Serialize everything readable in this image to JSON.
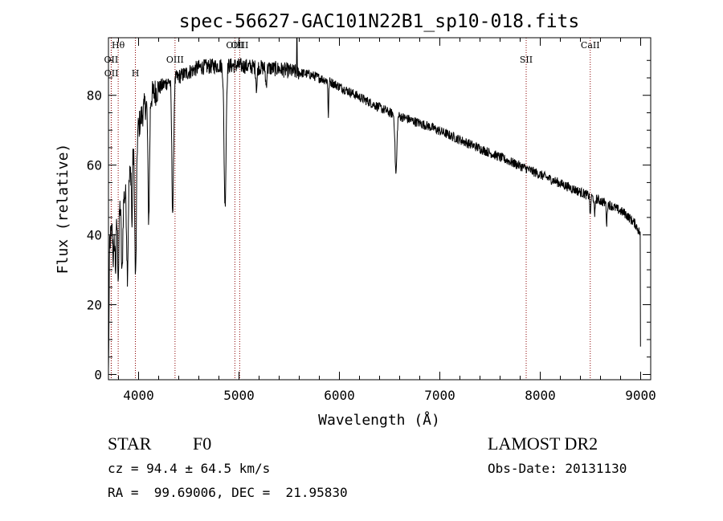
{
  "chart_data": {
    "type": "line",
    "title": "spec-56627-GAC101N22B1_sp10-018.fits",
    "xlabel": "Wavelength (Å)",
    "ylabel": "Flux (relative)",
    "xlim": [
      3700,
      9100
    ],
    "ylim": [
      -1.5,
      96.5
    ],
    "xticks": [
      4000,
      5000,
      6000,
      7000,
      8000,
      9000
    ],
    "yticks": [
      0,
      20,
      40,
      60,
      80
    ],
    "xtick_labels": [
      "4000",
      "5000",
      "6000",
      "7000",
      "8000",
      "9000"
    ],
    "ytick_labels": [
      "0",
      "20",
      "40",
      "60",
      "80"
    ],
    "grid": false,
    "line_color": "#000000",
    "marker_color": "#8b0000",
    "continuum": [
      [
        3700,
        0
      ],
      [
        3712,
        38
      ],
      [
        3740,
        42
      ],
      [
        3790,
        46
      ],
      [
        3830,
        50
      ],
      [
        3880,
        52
      ],
      [
        3920,
        58
      ],
      [
        3960,
        66
      ],
      [
        4000,
        71
      ],
      [
        4050,
        76
      ],
      [
        4100,
        79
      ],
      [
        4200,
        82
      ],
      [
        4300,
        84
      ],
      [
        4450,
        86
      ],
      [
        4600,
        88
      ],
      [
        4800,
        88.5
      ],
      [
        5000,
        88.5
      ],
      [
        5200,
        88
      ],
      [
        5400,
        87.5
      ],
      [
        5500,
        87
      ],
      [
        5700,
        86
      ],
      [
        5900,
        84
      ],
      [
        6100,
        81
      ],
      [
        6300,
        78
      ],
      [
        6500,
        75
      ],
      [
        6700,
        73
      ],
      [
        6900,
        71
      ],
      [
        7100,
        68.5
      ],
      [
        7300,
        66
      ],
      [
        7500,
        63.5
      ],
      [
        7700,
        61
      ],
      [
        7900,
        58.5
      ],
      [
        8100,
        56
      ],
      [
        8300,
        53.5
      ],
      [
        8500,
        51
      ],
      [
        8700,
        48.5
      ],
      [
        8850,
        46
      ],
      [
        8950,
        43
      ],
      [
        9000,
        40
      ]
    ],
    "absorption_lines": [
      {
        "x": 3750,
        "depth": 10,
        "width": 6
      },
      {
        "x": 3771,
        "depth": 14,
        "width": 6
      },
      {
        "x": 3798,
        "depth": 18,
        "width": 6
      },
      {
        "x": 3835,
        "depth": 22,
        "width": 7
      },
      {
        "x": 3889,
        "depth": 24,
        "width": 7
      },
      {
        "x": 3934,
        "depth": 20,
        "width": 4
      },
      {
        "x": 3970,
        "depth": 40,
        "width": 8
      },
      {
        "x": 4101,
        "depth": 34,
        "width": 8
      },
      {
        "x": 4340,
        "depth": 38,
        "width": 9
      },
      {
        "x": 4861,
        "depth": 40,
        "width": 10
      },
      {
        "x": 5175,
        "depth": 6,
        "width": 6
      },
      {
        "x": 5270,
        "depth": 5,
        "width": 6
      },
      {
        "x": 5890,
        "depth": 10,
        "width": 4
      },
      {
        "x": 6563,
        "depth": 17,
        "width": 9
      },
      {
        "x": 8498,
        "depth": 6,
        "width": 4
      },
      {
        "x": 8542,
        "depth": 6,
        "width": 4
      },
      {
        "x": 8662,
        "depth": 6,
        "width": 4
      }
    ],
    "emission_spikes": [
      {
        "x": 5577,
        "height": 12
      }
    ],
    "noise": 1.4,
    "line_markers": [
      {
        "label": "Hθ",
        "x": 3797,
        "row": 0
      },
      {
        "label": "OII",
        "x": 3727,
        "row": 1
      },
      {
        "label": "OII",
        "x": 3729,
        "row": 2
      },
      {
        "label": "H",
        "x": 3968,
        "row": 2
      },
      {
        "label": "OIII",
        "x": 4363,
        "row": 1
      },
      {
        "label": "OIII",
        "x": 4959,
        "row": 0
      },
      {
        "label": "OIII",
        "x": 5007,
        "row": 0
      },
      {
        "label": "SII",
        "x": 7860,
        "row": 1
      },
      {
        "label": "CaII",
        "x": 8498,
        "row": 0
      }
    ]
  },
  "info": {
    "type": "STAR",
    "subclass": "F0",
    "survey": "LAMOST DR2",
    "cz": "cz = 94.4 ± 64.5 km/s",
    "obs_date": "Obs-Date: 20131130",
    "coords": "RA =  99.69006, DEC =  21.95830"
  }
}
